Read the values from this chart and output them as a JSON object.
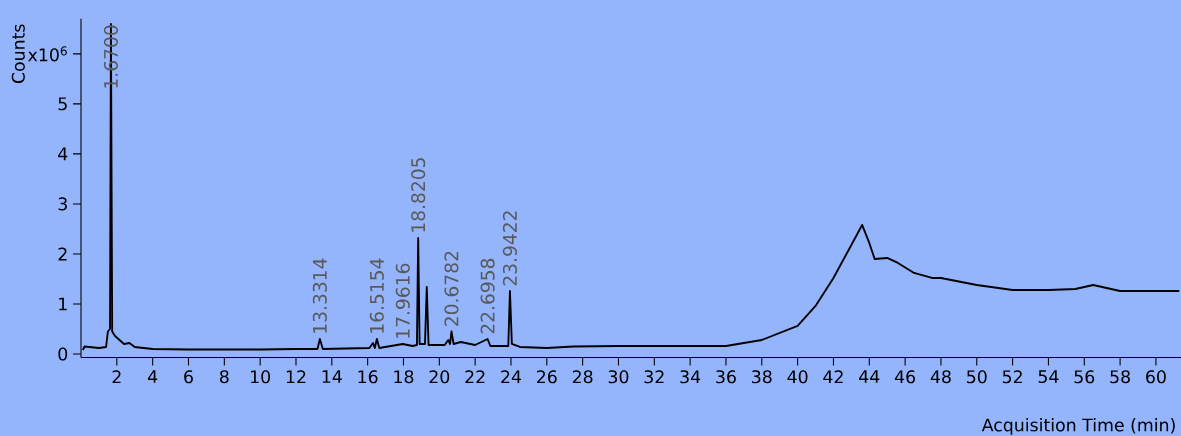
{
  "chart_data": {
    "type": "line",
    "xlabel": "Acquisition Time (min)",
    "ylabel": "Counts",
    "xlim": [
      0,
      61.4
    ],
    "ylim": [
      -0.07,
      6.7
    ],
    "xticks": [
      2,
      4,
      6,
      8,
      10,
      12,
      14,
      16,
      18,
      20,
      22,
      24,
      26,
      28,
      30,
      32,
      34,
      36,
      38,
      40,
      42,
      44,
      46,
      48,
      50,
      52,
      54,
      56,
      58,
      60
    ],
    "yticks": [
      0,
      1,
      2,
      3,
      4,
      5,
      {
        "value": 6,
        "label": "x10$^{6}$"
      }
    ],
    "grid": false,
    "legend": false,
    "marker": "none",
    "line_style": "solid",
    "series": [
      {
        "color": "#000000",
        "x": [
          0.1,
          0.2,
          1.0,
          1.4,
          1.5,
          1.62,
          1.67,
          1.74,
          1.9,
          2.4,
          2.7,
          3.0,
          4,
          6,
          8,
          10,
          12,
          13.2,
          13.3314,
          13.5,
          14.8,
          16.1,
          16.3,
          16.4,
          16.5154,
          16.65,
          17.9616,
          18.5,
          18.75,
          18.8205,
          18.9,
          19.2,
          19.3,
          19.4,
          20.3,
          20.5,
          20.6,
          20.6782,
          20.8,
          21.2,
          22.0,
          22.6958,
          22.85,
          23.85,
          23.9422,
          24.05,
          24.5,
          26,
          27.5,
          30,
          34,
          36,
          38,
          40,
          41,
          42,
          43,
          43.6,
          44,
          44.3,
          45,
          45.6,
          46.5,
          47.5,
          48,
          50,
          52,
          54,
          55.5,
          56.5,
          58,
          60,
          61.3
        ],
        "values": [
          0.08,
          0.15,
          0.12,
          0.14,
          0.45,
          0.5,
          6.6,
          0.45,
          0.36,
          0.2,
          0.22,
          0.14,
          0.1,
          0.09,
          0.09,
          0.09,
          0.1,
          0.1,
          0.3,
          0.1,
          0.11,
          0.12,
          0.22,
          0.12,
          0.3,
          0.12,
          0.2,
          0.16,
          0.18,
          2.32,
          0.2,
          0.2,
          1.34,
          0.18,
          0.18,
          0.28,
          0.2,
          0.45,
          0.2,
          0.24,
          0.18,
          0.3,
          0.16,
          0.16,
          1.26,
          0.2,
          0.14,
          0.12,
          0.15,
          0.16,
          0.16,
          0.16,
          0.28,
          0.56,
          0.96,
          1.52,
          2.18,
          2.58,
          2.22,
          1.9,
          1.92,
          1.82,
          1.62,
          1.52,
          1.52,
          1.38,
          1.28,
          1.28,
          1.3,
          1.38,
          1.26,
          1.26,
          1.26
        ]
      }
    ],
    "annotations": [
      {
        "text": "1.6700",
        "x": 1.67,
        "y": 5.2
      },
      {
        "text": "13.3314",
        "x": 13.3314,
        "y": 0.3
      },
      {
        "text": "16.5154",
        "x": 16.5154,
        "y": 0.3
      },
      {
        "text": "17.9616",
        "x": 17.9616,
        "y": 0.2
      },
      {
        "text": "18.8205",
        "x": 18.8205,
        "y": 2.32
      },
      {
        "text": "20.6782",
        "x": 20.6782,
        "y": 0.45
      },
      {
        "text": "22.6958",
        "x": 22.6958,
        "y": 0.3
      },
      {
        "text": "23.9422",
        "x": 23.9422,
        "y": 1.26
      }
    ]
  }
}
